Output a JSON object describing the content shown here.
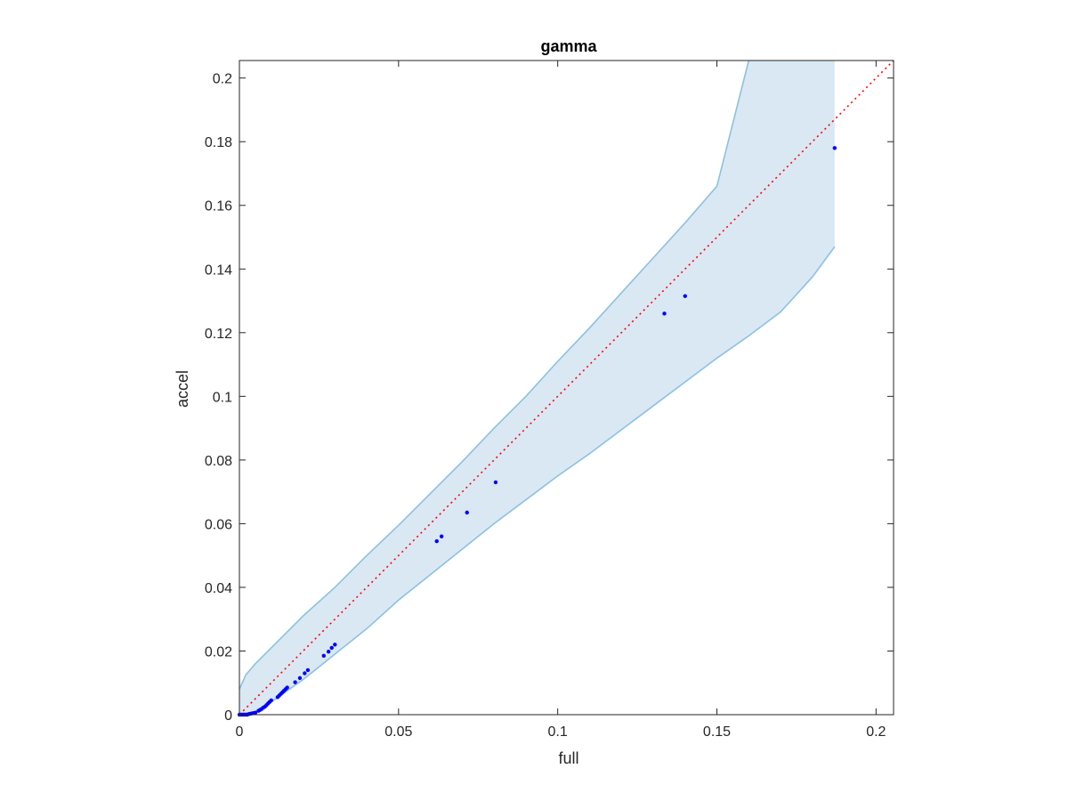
{
  "chart_data": {
    "type": "scatter",
    "title": "gamma",
    "xlabel": "full",
    "ylabel": "accel",
    "xlim": [
      0,
      0.2055
    ],
    "ylim": [
      0,
      0.2055
    ],
    "xticks": [
      0,
      0.05,
      0.1,
      0.15,
      0.2
    ],
    "xtick_labels": [
      "0",
      "0.05",
      "0.1",
      "0.15",
      "0.2"
    ],
    "yticks": [
      0,
      0.02,
      0.04,
      0.06,
      0.08,
      0.1,
      0.12,
      0.14,
      0.16,
      0.18,
      0.2
    ],
    "ytick_labels": [
      "0",
      "0.02",
      "0.04",
      "0.06",
      "0.08",
      "0.1",
      "0.12",
      "0.14",
      "0.16",
      "0.18",
      "0.2"
    ],
    "grid": false,
    "colors": {
      "points": "#0000ff",
      "identity_line": "#ff0000",
      "band_fill": "#dae8f4",
      "band_edge": "#8cc1e0",
      "axes": "#262626"
    },
    "identity_line": {
      "x": [
        0,
        0.2055
      ],
      "y": [
        0,
        0.2055
      ],
      "style": "dotted"
    },
    "band": {
      "upper": {
        "x": [
          0,
          0.002,
          0.005,
          0.01,
          0.015,
          0.02,
          0.03,
          0.04,
          0.05,
          0.06,
          0.07,
          0.08,
          0.09,
          0.1,
          0.11,
          0.12,
          0.13,
          0.14,
          0.15,
          0.16
        ],
        "y": [
          0.008,
          0.0125,
          0.016,
          0.021,
          0.026,
          0.031,
          0.04,
          0.05,
          0.0595,
          0.0695,
          0.0795,
          0.09,
          0.1,
          0.111,
          0.1215,
          0.1325,
          0.1435,
          0.1545,
          0.166,
          0.2055
        ]
      },
      "right_edge": {
        "x": 0.187,
        "y": [
          0.147,
          0.2055
        ]
      },
      "lower": {
        "x": [
          0,
          0.005,
          0.01,
          0.02,
          0.03,
          0.04,
          0.05,
          0.06,
          0.07,
          0.08,
          0.09,
          0.1,
          0.11,
          0.12,
          0.13,
          0.14,
          0.15,
          0.16,
          0.17,
          0.18,
          0.187
        ],
        "y": [
          0,
          0.001,
          0.004,
          0.011,
          0.019,
          0.027,
          0.036,
          0.044,
          0.052,
          0.06,
          0.0675,
          0.075,
          0.082,
          0.0895,
          0.097,
          0.1045,
          0.112,
          0.119,
          0.1265,
          0.1375,
          0.147
        ]
      }
    },
    "series": [
      {
        "x": [
          0,
          0.0005,
          0.001,
          0.0015,
          0.002,
          0.0025,
          0.003,
          0.0035,
          0.004,
          0.0045,
          0.005,
          0.006,
          0.0065,
          0.007,
          0.0075,
          0.008,
          0.0085,
          0.009,
          0.0095,
          0.01,
          0.012,
          0.0125,
          0.013,
          0.0135,
          0.014,
          0.0145,
          0.015,
          0.0175,
          0.019,
          0.0205,
          0.0215,
          0.0265,
          0.028,
          0.029,
          0.03,
          0.062,
          0.0635,
          0.0715,
          0.0805,
          0.1335,
          0.14,
          0.187
        ],
        "y": [
          0,
          0,
          0,
          0,
          0,
          0,
          0.0002,
          0.0003,
          0.0004,
          0.0005,
          0.0006,
          0.0012,
          0.0015,
          0.0018,
          0.0022,
          0.0025,
          0.003,
          0.0035,
          0.004,
          0.0045,
          0.0055,
          0.006,
          0.0065,
          0.007,
          0.0075,
          0.008,
          0.0085,
          0.0102,
          0.0115,
          0.013,
          0.014,
          0.0185,
          0.0198,
          0.021,
          0.022,
          0.0545,
          0.056,
          0.0635,
          0.073,
          0.126,
          0.1315,
          0.178
        ]
      }
    ]
  }
}
